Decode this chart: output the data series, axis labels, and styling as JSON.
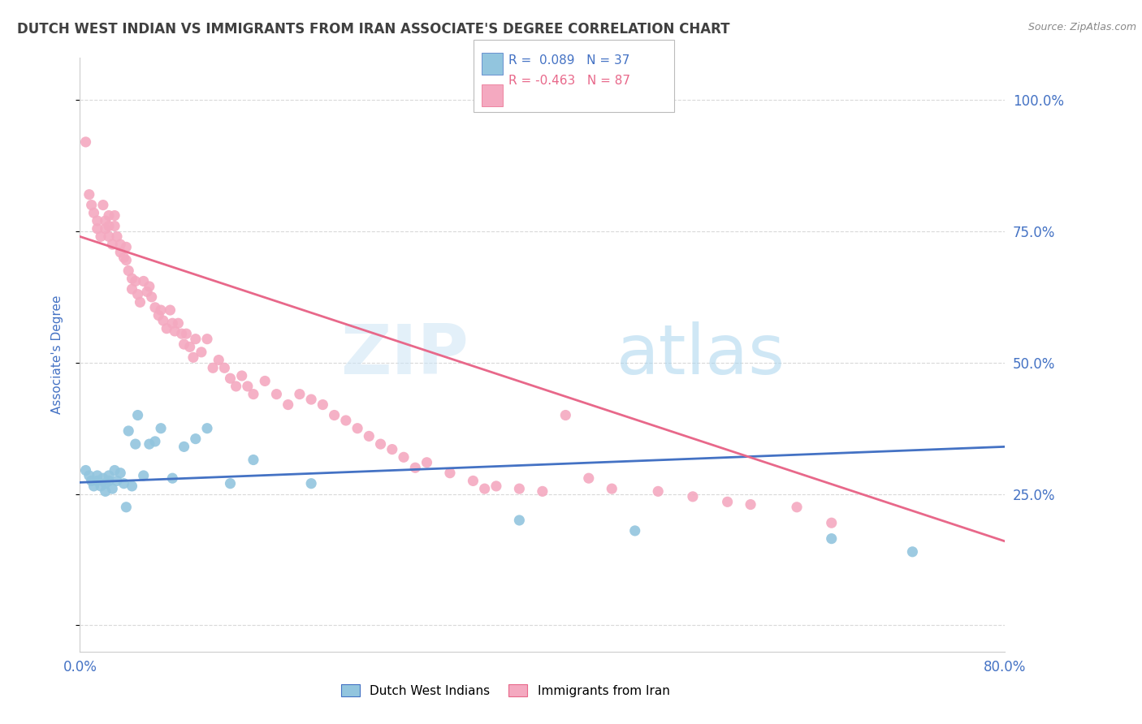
{
  "title": "DUTCH WEST INDIAN VS IMMIGRANTS FROM IRAN ASSOCIATE'S DEGREE CORRELATION CHART",
  "source": "Source: ZipAtlas.com",
  "ylabel": "Associate's Degree",
  "yticks": [
    0.0,
    0.25,
    0.5,
    0.75,
    1.0
  ],
  "ytick_labels": [
    "",
    "25.0%",
    "50.0%",
    "75.0%",
    "100.0%"
  ],
  "xmin": 0.0,
  "xmax": 0.8,
  "ymin": -0.05,
  "ymax": 1.08,
  "blue_color": "#92c5de",
  "pink_color": "#f4a9c0",
  "blue_line_color": "#4472c4",
  "pink_line_color": "#e8688a",
  "legend_blue_R": "R =  0.089",
  "legend_blue_N": "N = 37",
  "legend_pink_R": "R = -0.463",
  "legend_pink_N": "N = 87",
  "watermark_zip": "ZIP",
  "watermark_atlas": "atlas",
  "legend1_label": "Dutch West Indians",
  "legend2_label": "Immigrants from Iran",
  "blue_scatter_x": [
    0.005,
    0.008,
    0.01,
    0.012,
    0.015,
    0.015,
    0.018,
    0.02,
    0.022,
    0.022,
    0.025,
    0.025,
    0.028,
    0.03,
    0.032,
    0.035,
    0.038,
    0.04,
    0.042,
    0.045,
    0.048,
    0.05,
    0.055,
    0.06,
    0.065,
    0.07,
    0.08,
    0.09,
    0.1,
    0.11,
    0.13,
    0.15,
    0.2,
    0.38,
    0.48,
    0.65,
    0.72
  ],
  "blue_scatter_y": [
    0.295,
    0.285,
    0.275,
    0.265,
    0.285,
    0.275,
    0.265,
    0.28,
    0.27,
    0.255,
    0.285,
    0.275,
    0.26,
    0.295,
    0.275,
    0.29,
    0.27,
    0.225,
    0.37,
    0.265,
    0.345,
    0.4,
    0.285,
    0.345,
    0.35,
    0.375,
    0.28,
    0.34,
    0.355,
    0.375,
    0.27,
    0.315,
    0.27,
    0.2,
    0.18,
    0.165,
    0.14
  ],
  "pink_scatter_x": [
    0.005,
    0.008,
    0.01,
    0.012,
    0.015,
    0.015,
    0.018,
    0.02,
    0.022,
    0.022,
    0.025,
    0.025,
    0.025,
    0.028,
    0.03,
    0.03,
    0.032,
    0.035,
    0.035,
    0.038,
    0.04,
    0.04,
    0.042,
    0.045,
    0.045,
    0.048,
    0.05,
    0.052,
    0.055,
    0.058,
    0.06,
    0.062,
    0.065,
    0.068,
    0.07,
    0.072,
    0.075,
    0.078,
    0.08,
    0.082,
    0.085,
    0.088,
    0.09,
    0.092,
    0.095,
    0.098,
    0.1,
    0.105,
    0.11,
    0.115,
    0.12,
    0.125,
    0.13,
    0.135,
    0.14,
    0.145,
    0.15,
    0.16,
    0.17,
    0.18,
    0.19,
    0.2,
    0.21,
    0.22,
    0.23,
    0.24,
    0.25,
    0.26,
    0.27,
    0.28,
    0.29,
    0.3,
    0.32,
    0.34,
    0.35,
    0.36,
    0.38,
    0.4,
    0.42,
    0.44,
    0.46,
    0.5,
    0.53,
    0.56,
    0.58,
    0.62,
    0.65
  ],
  "pink_scatter_y": [
    0.92,
    0.82,
    0.8,
    0.785,
    0.77,
    0.755,
    0.74,
    0.8,
    0.77,
    0.755,
    0.78,
    0.76,
    0.74,
    0.725,
    0.78,
    0.76,
    0.74,
    0.725,
    0.71,
    0.7,
    0.72,
    0.695,
    0.675,
    0.66,
    0.64,
    0.655,
    0.63,
    0.615,
    0.655,
    0.635,
    0.645,
    0.625,
    0.605,
    0.59,
    0.6,
    0.58,
    0.565,
    0.6,
    0.575,
    0.56,
    0.575,
    0.555,
    0.535,
    0.555,
    0.53,
    0.51,
    0.545,
    0.52,
    0.545,
    0.49,
    0.505,
    0.49,
    0.47,
    0.455,
    0.475,
    0.455,
    0.44,
    0.465,
    0.44,
    0.42,
    0.44,
    0.43,
    0.42,
    0.4,
    0.39,
    0.375,
    0.36,
    0.345,
    0.335,
    0.32,
    0.3,
    0.31,
    0.29,
    0.275,
    0.26,
    0.265,
    0.26,
    0.255,
    0.4,
    0.28,
    0.26,
    0.255,
    0.245,
    0.235,
    0.23,
    0.225,
    0.195
  ],
  "blue_trend_y_start": 0.272,
  "blue_trend_y_end": 0.34,
  "pink_trend_y_start": 0.74,
  "pink_trend_y_end": 0.16,
  "grid_color": "#d9d9d9",
  "background_color": "#ffffff",
  "title_color": "#404040",
  "axis_label_color": "#4472c4",
  "tick_color": "#4472c4"
}
